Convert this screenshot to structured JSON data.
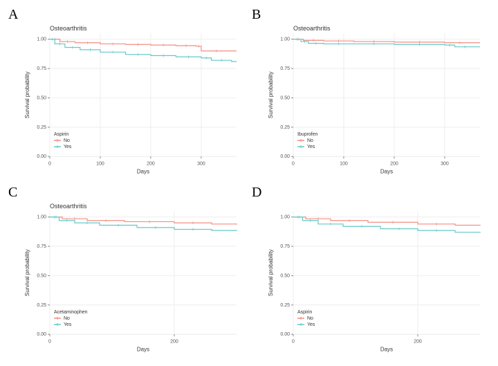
{
  "panels": [
    {
      "letter": "A",
      "title": "Osteoarthritis",
      "xlabel": "Days",
      "ylabel": "Survival probability",
      "xlim": [
        0,
        370
      ],
      "ylim": [
        0,
        1.05
      ],
      "xticks": [
        0,
        100,
        200,
        300
      ],
      "yticks": [
        0.0,
        0.25,
        0.5,
        0.75,
        1.0
      ],
      "legend_title": "Aspirin",
      "legend_items": [
        "No",
        "Yes"
      ],
      "colors": [
        "#f28e82",
        "#65c8c8"
      ],
      "background": "#ffffff",
      "grid_color": "#eeeeee",
      "series": [
        {
          "x": [
            0,
            20,
            50,
            100,
            150,
            200,
            250,
            290,
            300,
            360,
            370
          ],
          "y": [
            1.0,
            0.98,
            0.97,
            0.96,
            0.955,
            0.95,
            0.945,
            0.94,
            0.9,
            0.9,
            0.9
          ]
        },
        {
          "x": [
            0,
            10,
            30,
            60,
            100,
            150,
            200,
            250,
            300,
            320,
            360,
            370
          ],
          "y": [
            1.0,
            0.96,
            0.93,
            0.91,
            0.89,
            0.87,
            0.86,
            0.85,
            0.84,
            0.82,
            0.81,
            0.81
          ]
        }
      ]
    },
    {
      "letter": "B",
      "title": "Osteoarthritis",
      "xlabel": "Days",
      "ylabel": "Survival probability",
      "xlim": [
        0,
        370
      ],
      "ylim": [
        0,
        1.05
      ],
      "xticks": [
        0,
        100,
        200,
        300
      ],
      "yticks": [
        0.0,
        0.25,
        0.5,
        0.75,
        1.0
      ],
      "legend_title": "Ibuprofen",
      "legend_items": [
        "No",
        "Yes"
      ],
      "colors": [
        "#f28e82",
        "#65c8c8"
      ],
      "background": "#ffffff",
      "grid_color": "#eeeeee",
      "series": [
        {
          "x": [
            0,
            20,
            60,
            120,
            200,
            300,
            360,
            370
          ],
          "y": [
            1.0,
            0.99,
            0.985,
            0.98,
            0.975,
            0.97,
            0.97,
            0.97
          ]
        },
        {
          "x": [
            0,
            15,
            30,
            60,
            120,
            200,
            300,
            320,
            360,
            370
          ],
          "y": [
            1.0,
            0.98,
            0.965,
            0.96,
            0.96,
            0.955,
            0.95,
            0.935,
            0.935,
            0.935
          ]
        }
      ]
    },
    {
      "letter": "C",
      "title": "Osteoarthritis",
      "xlabel": "Days",
      "ylabel": "Survival probability",
      "xlim": [
        0,
        300
      ],
      "ylim": [
        0,
        1.05
      ],
      "xticks": [
        0,
        200
      ],
      "yticks": [
        0.0,
        0.25,
        0.5,
        0.75,
        1.0
      ],
      "legend_title": "Acetaminophen",
      "legend_items": [
        "No",
        "Yes"
      ],
      "colors": [
        "#f28e82",
        "#65c8c8"
      ],
      "background": "#ffffff",
      "grid_color": "#eeeeee",
      "series": [
        {
          "x": [
            0,
            20,
            60,
            120,
            200,
            260,
            300
          ],
          "y": [
            1.0,
            0.985,
            0.97,
            0.96,
            0.95,
            0.94,
            0.935
          ]
        },
        {
          "x": [
            0,
            15,
            40,
            80,
            140,
            200,
            260,
            300
          ],
          "y": [
            1.0,
            0.97,
            0.95,
            0.93,
            0.91,
            0.895,
            0.885,
            0.88
          ]
        }
      ]
    },
    {
      "letter": "D",
      "title": "",
      "xlabel": "Days",
      "ylabel": "Survival probability",
      "xlim": [
        0,
        300
      ],
      "ylim": [
        0,
        1.05
      ],
      "xticks": [
        0,
        200
      ],
      "yticks": [
        0.0,
        0.25,
        0.5,
        0.75,
        1.0
      ],
      "legend_title": "Aspirin",
      "legend_items": [
        "No",
        "Yes"
      ],
      "colors": [
        "#f28e82",
        "#65c8c8"
      ],
      "background": "#ffffff",
      "grid_color": "#eeeeee",
      "series": [
        {
          "x": [
            0,
            20,
            60,
            120,
            200,
            260,
            300
          ],
          "y": [
            1.0,
            0.985,
            0.97,
            0.955,
            0.94,
            0.93,
            0.925
          ]
        },
        {
          "x": [
            0,
            15,
            40,
            80,
            140,
            200,
            260,
            300
          ],
          "y": [
            1.0,
            0.97,
            0.94,
            0.92,
            0.9,
            0.885,
            0.87,
            0.865
          ]
        }
      ]
    }
  ]
}
